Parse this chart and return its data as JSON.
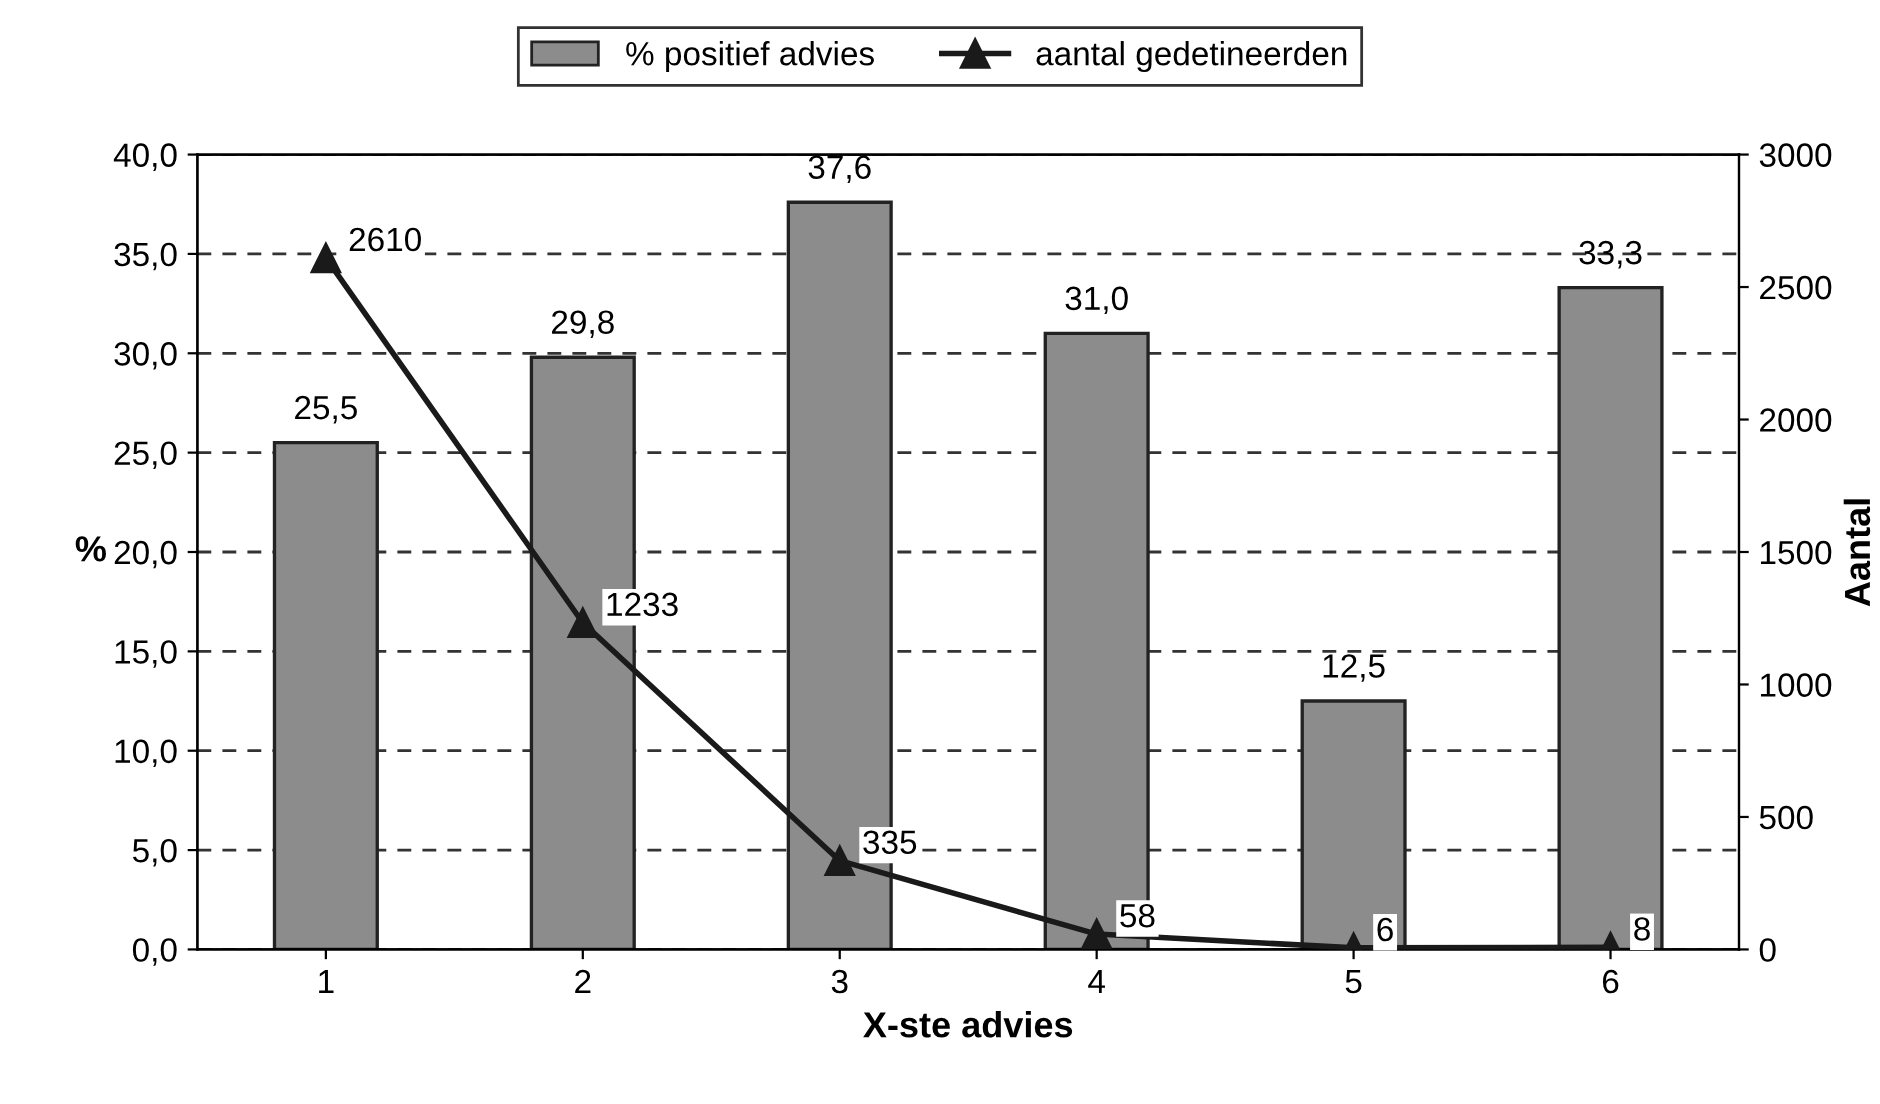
{
  "chart_data": {
    "type": "bar",
    "categories": [
      "1",
      "2",
      "3",
      "4",
      "5",
      "6"
    ],
    "xlabel": "X-ste advies",
    "ylabel": "%",
    "y2label": "Aantal",
    "series": [
      {
        "name": "% positief advies",
        "color": "#8c8c8c",
        "values": [
          25.5,
          29.8,
          37.6,
          31.0,
          12.5,
          33.3
        ],
        "value_labels": [
          "25,5",
          "29,8",
          "37,6",
          "31,0",
          "12,5",
          "33,3"
        ]
      },
      {
        "name": "aantal gedetineerden",
        "type": "line",
        "axis": "y2",
        "color": "#1a1a1a",
        "marker": "triangle",
        "values": [
          2610,
          1233,
          335,
          58,
          6,
          8
        ],
        "value_labels": [
          "2610",
          "1233",
          "335",
          "58",
          "6",
          "8"
        ]
      }
    ],
    "ylim": [
      0,
      40
    ],
    "yticks": [
      {
        "value": 0,
        "label": "0,0"
      },
      {
        "value": 5,
        "label": "5,0"
      },
      {
        "value": 10,
        "label": "10,0"
      },
      {
        "value": 15,
        "label": "15,0"
      },
      {
        "value": 20,
        "label": "20,0"
      },
      {
        "value": 25,
        "label": "25,0"
      },
      {
        "value": 30,
        "label": "30,0"
      },
      {
        "value": 35,
        "label": "35,0"
      },
      {
        "value": 40,
        "label": "40,0"
      }
    ],
    "y2lim": [
      0,
      3000
    ],
    "y2ticks": [
      0,
      500,
      1000,
      1500,
      2000,
      2500,
      3000
    ],
    "grid": "y",
    "legend": "top"
  }
}
